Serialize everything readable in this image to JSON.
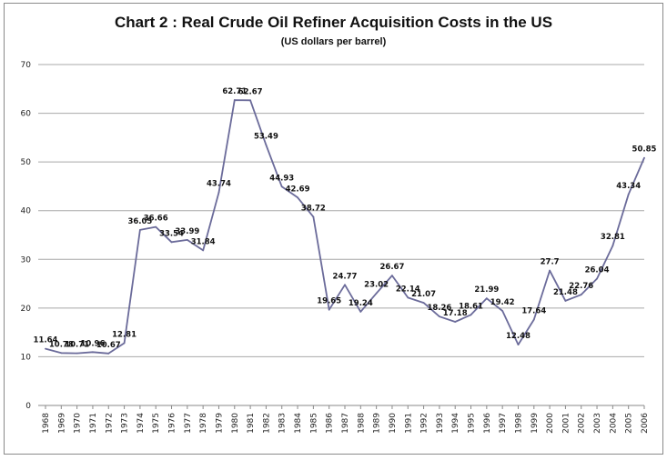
{
  "chart_data": {
    "type": "line",
    "title": "Chart 2 : Real Crude Oil Refiner Acquisition Costs in the US",
    "subtitle": "(US dollars per barrel)",
    "xlabel": "",
    "ylabel": "",
    "ylim": [
      0,
      70
    ],
    "yticks": [
      0,
      10,
      20,
      30,
      40,
      50,
      60,
      70
    ],
    "grid": "horizontal",
    "legend": "none",
    "line_color": "#6b6b9a",
    "categories": [
      "1968",
      "1969",
      "1970",
      "1971",
      "1972",
      "1973",
      "1974",
      "1975",
      "1976",
      "1977",
      "1978",
      "1979",
      "1980",
      "1981",
      "1982",
      "1983",
      "1984",
      "1985",
      "1986",
      "1987",
      "1988",
      "1989",
      "1990",
      "1991",
      "1992",
      "1993",
      "1994",
      "1995",
      "1996",
      "1997",
      "1998",
      "1999",
      "2000",
      "2001",
      "2002",
      "2003",
      "2004",
      "2005",
      "2006"
    ],
    "values": [
      11.64,
      10.78,
      10.71,
      10.96,
      10.67,
      12.81,
      36.05,
      36.66,
      33.54,
      33.99,
      31.84,
      43.74,
      62.71,
      62.67,
      53.49,
      44.93,
      42.69,
      38.72,
      19.65,
      24.77,
      19.24,
      23.02,
      26.67,
      22.14,
      21.07,
      18.26,
      17.18,
      18.61,
      21.99,
      19.42,
      12.48,
      17.64,
      27.7,
      21.48,
      22.76,
      26.04,
      32.81,
      43.34,
      50.85
    ],
    "data_labels": [
      "11.64",
      "10.78",
      "10.71",
      "10.96",
      "10.67",
      "12.81",
      "36.05",
      "36.66",
      "33.54",
      "33.99",
      "31.84",
      "43.74",
      "62.71",
      "62.67",
      "53.49",
      "44.93",
      "42.69",
      "38.72",
      "19.65",
      "24.77",
      "19.24",
      "23.02",
      "26.67",
      "22.14",
      "21.07",
      "18.26",
      "17.18",
      "18.61",
      "21.99",
      "19.42",
      "12.48",
      "17.64",
      "27.7",
      "21.48",
      "22.76",
      "26.04",
      "32.81",
      "43.34",
      "50.85"
    ]
  }
}
